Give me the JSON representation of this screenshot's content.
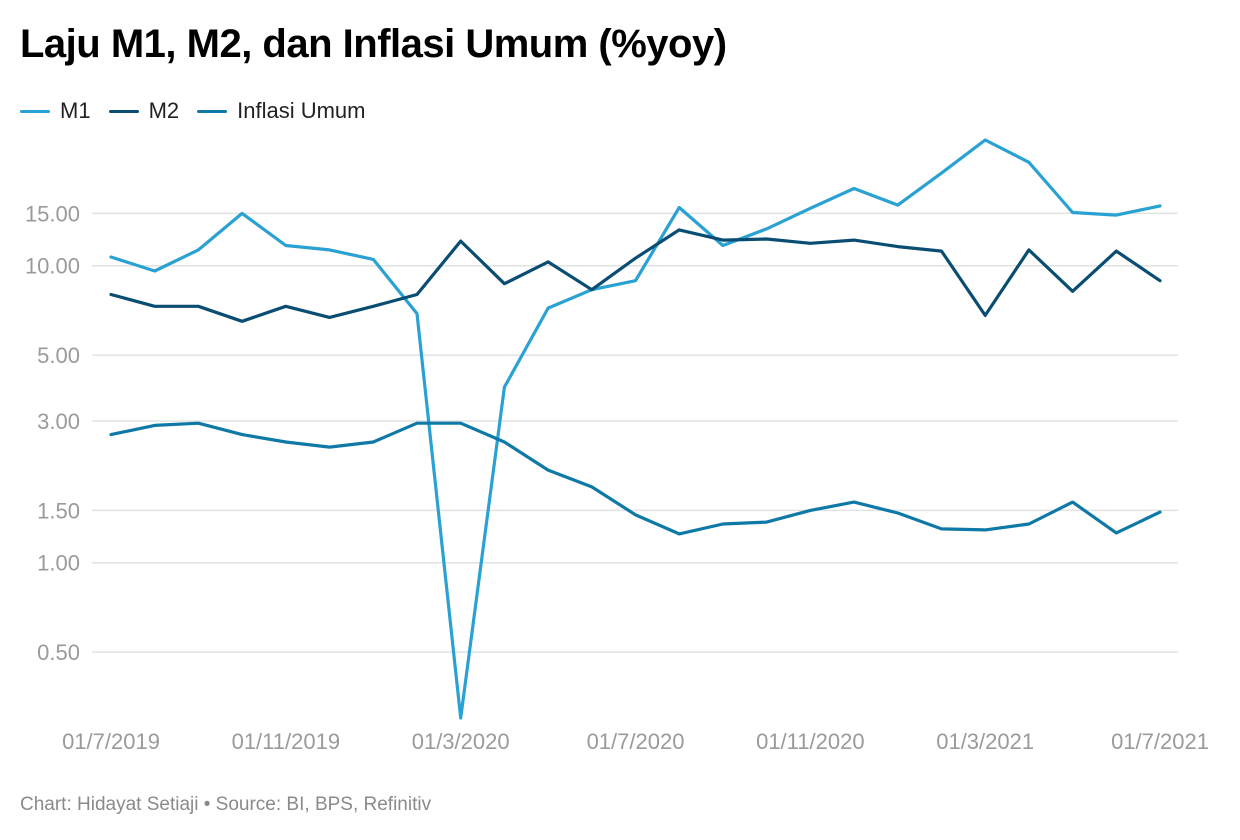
{
  "title": "Laju M1, M2, dan Inflasi Umum (%yoy)",
  "footer": "Chart: Hidayat Setiaji • Source: BI, BPS, Refinitiv",
  "chart_data": {
    "type": "line",
    "title": "Laju M1, M2, dan Inflasi Umum (%yoy)",
    "y_scale": "log",
    "ylim": [
      0.3,
      30
    ],
    "grid": true,
    "legend_position": "top-left",
    "x": [
      "2019-07-01",
      "2019-08-01",
      "2019-09-01",
      "2019-10-01",
      "2019-11-01",
      "2019-12-01",
      "2020-01-01",
      "2020-02-01",
      "2020-03-01",
      "2020-04-01",
      "2020-05-01",
      "2020-06-01",
      "2020-07-01",
      "2020-08-01",
      "2020-09-01",
      "2020-10-01",
      "2020-11-01",
      "2020-12-01",
      "2021-01-01",
      "2021-02-01",
      "2021-03-01",
      "2021-04-01",
      "2021-05-01",
      "2021-06-01",
      "2021-07-01"
    ],
    "x_ticks": [
      {
        "x": "2019-07-01",
        "label": "01/7/2019"
      },
      {
        "x": "2019-11-01",
        "label": "01/11/2019"
      },
      {
        "x": "2020-03-01",
        "label": "01/3/2020"
      },
      {
        "x": "2020-07-01",
        "label": "01/7/2020"
      },
      {
        "x": "2020-11-01",
        "label": "01/11/2020"
      },
      {
        "x": "2021-03-01",
        "label": "01/3/2021"
      },
      {
        "x": "2021-07-01",
        "label": "01/7/2021"
      }
    ],
    "y_ticks": [
      {
        "value": 0.5,
        "label": "0.50"
      },
      {
        "value": 1.0,
        "label": "1.00"
      },
      {
        "value": 1.5,
        "label": "1.50"
      },
      {
        "value": 3.0,
        "label": "3.00"
      },
      {
        "value": 5.0,
        "label": "5.00"
      },
      {
        "value": 10.0,
        "label": "10.00"
      },
      {
        "value": 15.0,
        "label": "15.00"
      }
    ],
    "series": [
      {
        "name": "M1",
        "color": "#2aa1d3",
        "values": [
          10.7,
          9.6,
          11.3,
          15.0,
          11.7,
          11.3,
          10.5,
          6.9,
          0.3,
          3.9,
          7.2,
          8.3,
          8.9,
          15.7,
          11.7,
          13.3,
          15.6,
          18.2,
          16.0,
          20.5,
          26.5,
          22.3,
          15.1,
          14.8,
          15.9
        ]
      },
      {
        "name": "M2",
        "color": "#0a4d73",
        "values": [
          8.0,
          7.3,
          7.3,
          6.5,
          7.3,
          6.7,
          7.3,
          8.0,
          12.1,
          8.7,
          10.3,
          8.3,
          10.6,
          13.2,
          12.2,
          12.3,
          11.9,
          12.2,
          11.6,
          11.2,
          6.8,
          11.3,
          8.2,
          11.2,
          8.9
        ]
      },
      {
        "name": "Inflasi Umum",
        "color": "#0e79a7",
        "values": [
          2.7,
          2.9,
          2.95,
          2.7,
          2.55,
          2.45,
          2.55,
          2.95,
          2.95,
          2.55,
          2.05,
          1.8,
          1.45,
          1.25,
          1.35,
          1.37,
          1.5,
          1.6,
          1.47,
          1.3,
          1.29,
          1.35,
          1.6,
          1.26,
          1.48
        ]
      }
    ]
  }
}
